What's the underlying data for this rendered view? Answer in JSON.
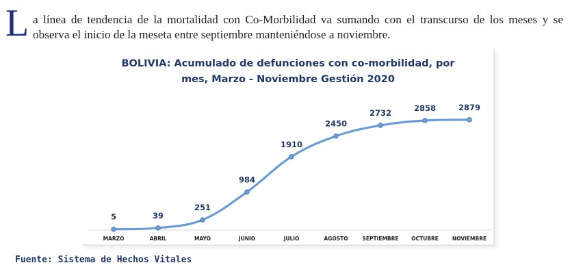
{
  "intro": {
    "drop_cap": "L",
    "text": "a línea de tendencia de la mortalidad con Co-Morbilidad va sumando con el transcurso de los meses y se observa el inicio de la meseta entre septiembre manteniéndose a noviembre."
  },
  "source": "Fuente: Sistema de Hechos Vitales",
  "chart_data": {
    "type": "line",
    "title_line1": "BOLIVIA: Acumulado de defunciones  con co-morbilidad, por",
    "title_line2": "mes, Marzo - Noviembre Gestión 2020",
    "categories": [
      "MARZO",
      "ABRIL",
      "MAYO",
      "JUNIO",
      "JULIO",
      "AGOSTO",
      "SEPTIEMBRE",
      "OCTUBRE",
      "NOVIEMBRE"
    ],
    "series": [
      {
        "values": [
          5,
          39,
          251,
          984,
          1910,
          2450,
          2732,
          2858,
          2879
        ]
      }
    ],
    "data_labels": true,
    "ylim": [
      0,
      3200
    ],
    "grid": false,
    "line_color": "#6b9bd1",
    "label_color": "#1f3864"
  }
}
